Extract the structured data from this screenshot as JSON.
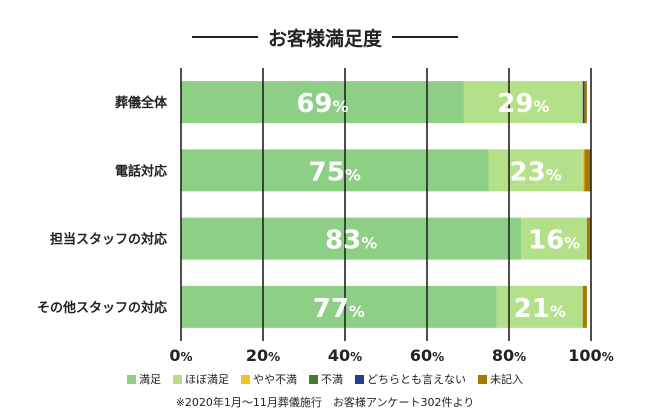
{
  "title": "お客様満足度",
  "footnote": "※2020年1月～11月葬儀施行　お客様アンケート302件より",
  "colors": {
    "satisfied": "#8ccf85",
    "mostly_satisfied": "#b4e08a",
    "somewhat_dissatisfied": "#f5c31c",
    "dissatisfied": "#4a7a2c",
    "neutral": "#243f8f",
    "no_answer": "#a87800"
  },
  "chart_data": {
    "type": "bar",
    "orientation": "horizontal",
    "stacked": true,
    "title": "お客様満足度",
    "categories": [
      "葬儀全体",
      "電話対応",
      "担当スタッフの対応",
      "その他スタッフの対応"
    ],
    "x_ticks": [
      "0%",
      "20%",
      "40%",
      "60%",
      "80%",
      "100%"
    ],
    "xlim": [
      0,
      100
    ],
    "grid": true,
    "legend_position": "bottom",
    "series": [
      {
        "name": "満足",
        "color": "#8ccf85",
        "values": [
          69,
          75,
          83,
          77
        ],
        "labels": [
          "69",
          "75",
          "83",
          "77"
        ]
      },
      {
        "name": "ほぼ満足",
        "color": "#b4e08a",
        "values": [
          29,
          23,
          16,
          21
        ],
        "labels": [
          "29",
          "23",
          "16",
          "21"
        ]
      },
      {
        "name": "やや不満",
        "color": "#f5c31c",
        "values": [
          0,
          0.4,
          0,
          0
        ]
      },
      {
        "name": "不満",
        "color": "#4a7a2c",
        "values": [
          0,
          0,
          0,
          0
        ]
      },
      {
        "name": "どちらとも言えない",
        "color": "#243f8f",
        "values": [
          0.4,
          0,
          0,
          0
        ]
      },
      {
        "name": "未記入",
        "color": "#a87800",
        "values": [
          0.6,
          1.6,
          1,
          1
        ]
      }
    ],
    "value_suffix": "%"
  }
}
